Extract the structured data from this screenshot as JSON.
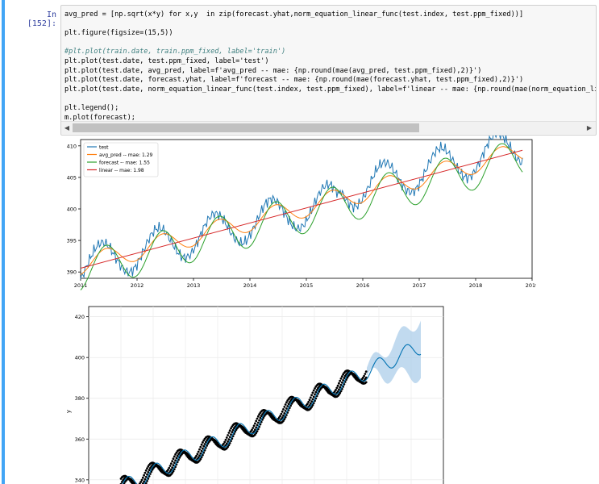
{
  "cell": {
    "prompt": "In [152]:",
    "code_lines": [
      "avg_pred = [np.sqrt(x*y) for x,y  in zip(forecast.yhat,norm_equation_linear_func(test.index, test.ppm_fixed))]",
      "",
      "plt.figure(figsize=(15,5))",
      "",
      "#plt.plot(train.date, train.ppm_fixed, label='train')",
      "plt.plot(test.date, test.ppm_fixed, label='test')",
      "plt.plot(test.date, avg_pred, label=f'avg_pred -- mae: {np.round(mae(avg_pred, test.ppm_fixed),2)}')",
      "plt.plot(test.date, forecast.yhat, label=f'forecast -- mae: {np.round(mae(forecast.yhat, test.ppm_fixed),2)}')",
      "plt.plot(test.date, norm_equation_linear_func(test.index, test.ppm_fixed), label=f'linear -- mae: {np.round(mae(norm_equation_li",
      "",
      "plt.legend();",
      "m.plot(forecast);"
    ],
    "scroll_left": "◀",
    "scroll_right": "▶"
  },
  "colors": {
    "test": "#1f77b4",
    "avg_pred": "#ff7f0e",
    "forecast": "#2ca02c",
    "linear": "#d62728",
    "prophet_hist": "#000000",
    "prophet_fc": "#0072b2",
    "prophet_band": "#9fc6e6"
  },
  "chart_data": [
    {
      "type": "line",
      "xlim": [
        2011,
        2019
      ],
      "ylim": [
        389,
        411
      ],
      "x_ticks": [
        "2011",
        "2012",
        "2013",
        "2014",
        "2015",
        "2016",
        "2017",
        "2018",
        "2019"
      ],
      "y_ticks": [
        "390",
        "395",
        "400",
        "405",
        "410"
      ],
      "legend_position": "top-left",
      "series": [
        {
          "name": "test",
          "values": "seasonal measured CO2, ~390.9 rising to ~408 ppm, amplitude ~3"
        },
        {
          "name": "avg_pred -- mae: 1.29",
          "values": "smoothed seasonal prediction"
        },
        {
          "name": "forecast -- mae: 1.55",
          "values": "seasonal forecast"
        },
        {
          "name": "linear -- mae: 1.98",
          "values": [
            [
              2011.0,
              390.6
            ],
            [
              2018.83,
              409.3
            ]
          ]
        }
      ]
    },
    {
      "type": "line",
      "ylim": [
        334,
        425
      ],
      "y_ticks": [
        "340",
        "360",
        "380",
        "400",
        "420"
      ],
      "ylabel": "y",
      "grid": true
    }
  ]
}
